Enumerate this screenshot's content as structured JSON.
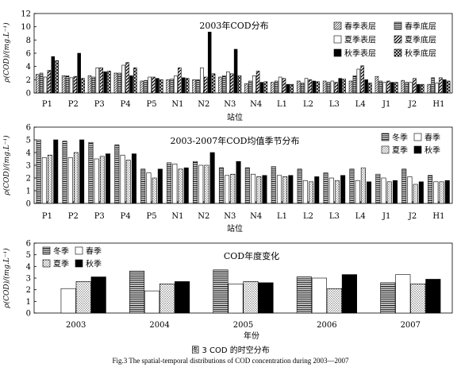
{
  "patterns": {
    "spring_surface": "hatch-diagonal-thin",
    "spring_bottom": "hatch-horizontal",
    "summer_surface": "white",
    "summer_bottom": "hatch-diagonal-thick",
    "autumn_surface": "black",
    "autumn_bottom": "hatch-crosshatch",
    "winter": "hatch-horizontal",
    "spring": "white",
    "summer": "dotted",
    "autumn": "black"
  },
  "chart_data": [
    {
      "type": "bar",
      "title": "2003年COD分布",
      "ylabel": "ρ(COD)/(mg.L⁻¹)",
      "xlabel": "站位",
      "ylim": [
        0,
        12
      ],
      "yticks": [
        0,
        2,
        4,
        6,
        8,
        10,
        12
      ],
      "categories": [
        "P1",
        "P2",
        "P3",
        "P4",
        "P5",
        "N1",
        "N2",
        "N3",
        "N4",
        "L1",
        "L2",
        "L3",
        "L4",
        "J1",
        "J2",
        "H1"
      ],
      "legend_position": "top-right",
      "series": [
        {
          "name": "春季表层",
          "pattern": "spring_surface",
          "values": [
            2.8,
            2.6,
            2.6,
            3.0,
            1.8,
            2.0,
            2.0,
            2.4,
            1.4,
            1.6,
            1.8,
            1.8,
            1.8,
            2.5,
            1.9,
            1.3
          ]
        },
        {
          "name": "春季底层",
          "pattern": "spring_bottom",
          "values": [
            3.0,
            2.6,
            2.4,
            3.0,
            1.9,
            2.1,
            2.0,
            2.6,
            1.8,
            1.8,
            1.5,
            1.6,
            2.6,
            1.8,
            1.6,
            2.3
          ]
        },
        {
          "name": "夏季表层",
          "pattern": "summer_surface",
          "values": [
            2.4,
            2.3,
            3.8,
            4.2,
            2.4,
            2.6,
            3.8,
            3.2,
            2.6,
            2.4,
            2.2,
            1.8,
            3.6,
            1.6,
            1.6,
            1.5
          ]
        },
        {
          "name": "夏季底层",
          "pattern": "summer_bottom",
          "values": [
            3.4,
            2.5,
            3.8,
            4.6,
            2.4,
            3.8,
            2.4,
            2.9,
            3.3,
            2.2,
            2.0,
            1.6,
            4.1,
            1.8,
            2.2,
            2.3
          ]
        },
        {
          "name": "秋季表层",
          "pattern": "autumn_surface",
          "values": [
            5.5,
            6.0,
            3.2,
            2.6,
            2.2,
            2.3,
            9.2,
            6.6,
            1.6,
            1.3,
            1.8,
            2.2,
            2.0,
            1.6,
            1.3,
            2.0
          ]
        },
        {
          "name": "秋季底层",
          "pattern": "autumn_bottom",
          "values": [
            4.9,
            2.2,
            3.3,
            3.8,
            2.0,
            2.2,
            2.9,
            2.6,
            1.7,
            1.3,
            1.7,
            2.1,
            1.5,
            1.6,
            1.3,
            1.8
          ]
        }
      ]
    },
    {
      "type": "bar",
      "title": "2003-2007年COD均值季节分布",
      "ylabel": "ρ(COD)/(mg.L⁻¹)",
      "xlabel": "站位",
      "ylim": [
        0,
        6
      ],
      "yticks": [
        0,
        1,
        2,
        3,
        4,
        5,
        6
      ],
      "categories": [
        "P1",
        "P2",
        "P3",
        "P4",
        "P5",
        "N1",
        "N2",
        "N3",
        "N4",
        "L1",
        "L2",
        "L3",
        "L4",
        "J1",
        "J2",
        "H1"
      ],
      "legend_position": "top-right",
      "series": [
        {
          "name": "冬季",
          "pattern": "winter",
          "values": [
            5.0,
            4.9,
            4.8,
            4.6,
            2.7,
            3.2,
            3.3,
            2.8,
            2.8,
            2.9,
            2.7,
            2.4,
            2.7,
            2.3,
            2.7,
            2.2
          ]
        },
        {
          "name": "春季",
          "pattern": "spring",
          "values": [
            3.6,
            3.6,
            3.5,
            3.8,
            2.4,
            3.1,
            3.0,
            2.2,
            2.3,
            2.2,
            1.8,
            2.0,
            1.8,
            2.0,
            2.1,
            1.7
          ]
        },
        {
          "name": "夏季",
          "pattern": "summer",
          "values": [
            3.8,
            4.0,
            3.7,
            3.4,
            2.0,
            2.7,
            3.0,
            2.3,
            2.1,
            2.1,
            1.7,
            1.8,
            2.8,
            1.7,
            1.5,
            1.7
          ]
        },
        {
          "name": "秋季",
          "pattern": "autumn",
          "values": [
            5.0,
            5.0,
            3.9,
            3.9,
            2.7,
            2.8,
            4.0,
            3.3,
            2.2,
            2.2,
            2.1,
            2.2,
            1.7,
            1.8,
            1.7,
            1.8
          ]
        }
      ]
    },
    {
      "type": "bar",
      "title": "COD年度变化",
      "ylabel": "ρ(COD)/(mg.L⁻¹)",
      "xlabel": "年份",
      "ylim": [
        0,
        6
      ],
      "yticks": [
        0,
        1,
        2,
        3,
        4,
        5,
        6
      ],
      "categories": [
        "2003",
        "2004",
        "2005",
        "2006",
        "2007"
      ],
      "legend_position": "top-left",
      "series": [
        {
          "name": "冬季",
          "pattern": "winter",
          "values": [
            null,
            3.6,
            3.7,
            3.1,
            2.6
          ]
        },
        {
          "name": "春季",
          "pattern": "spring",
          "values": [
            2.1,
            1.9,
            2.5,
            3.0,
            3.3
          ]
        },
        {
          "name": "夏季",
          "pattern": "summer",
          "values": [
            2.7,
            2.5,
            2.7,
            2.1,
            2.5
          ]
        },
        {
          "name": "秋季",
          "pattern": "autumn",
          "values": [
            3.1,
            2.7,
            2.6,
            3.3,
            2.9
          ]
        }
      ]
    }
  ],
  "caption": {
    "cn": "图 3   COD 的时空分布",
    "en": "Fig.3   The spatial-temporal distributions of COD concentration during 2003—2007"
  }
}
